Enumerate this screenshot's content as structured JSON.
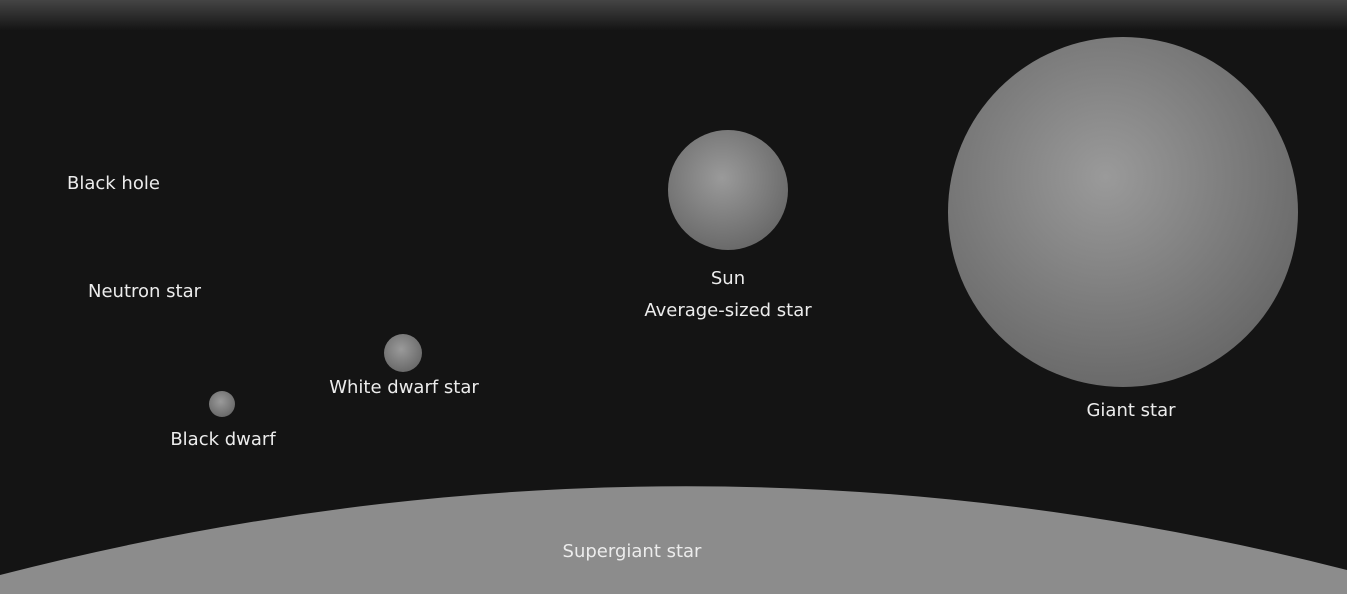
{
  "objects": [
    {
      "label": "Black hole"
    },
    {
      "label": "Neutron star"
    },
    {
      "label": "White dwarf star"
    },
    {
      "label": "Black dwarf"
    },
    {
      "label": "Sun",
      "sublabel": "Average-sized star"
    },
    {
      "label": "Giant star"
    },
    {
      "label": "Supergiant star"
    }
  ]
}
